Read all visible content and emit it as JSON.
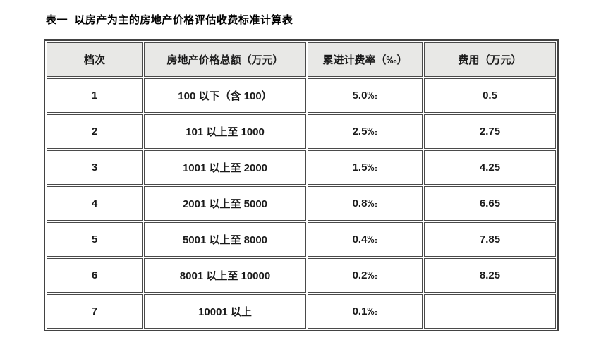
{
  "page": {
    "title": "表一  以房产为主的房地产价格评估收费标准计算表"
  },
  "table": {
    "headers": [
      "档次",
      "房地产价格总额（万元）",
      "累进计费率（‰）",
      "费用（万元）"
    ],
    "rows": [
      [
        "1",
        "100 以下（含 100）",
        "5.0‰",
        "0.5"
      ],
      [
        "2",
        "101 以上至 1000",
        "2.5‰",
        "2.75"
      ],
      [
        "3",
        "1001 以上至 2000",
        "1.5‰",
        "4.25"
      ],
      [
        "4",
        "2001 以上至 5000",
        "0.8‰",
        "6.65"
      ],
      [
        "5",
        "5001 以上至 8000",
        "0.4‰",
        "7.85"
      ],
      [
        "6",
        "8001 以上至 10000",
        "0.2‰",
        "8.25"
      ],
      [
        "7",
        "10001 以上",
        "0.1‰",
        ""
      ]
    ],
    "colors": {
      "header_bg": "#e8e8e6",
      "border": "#424242",
      "text": "#1a1a1a"
    }
  }
}
